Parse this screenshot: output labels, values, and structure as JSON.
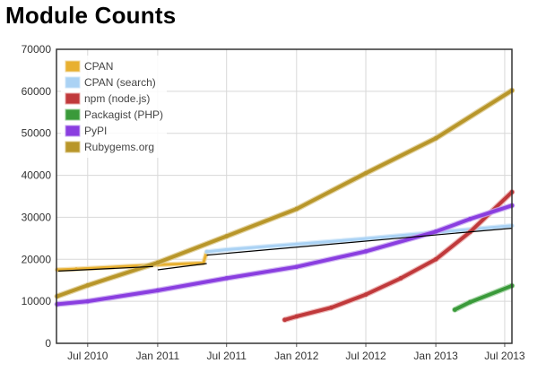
{
  "page": {
    "title": "Module Counts"
  },
  "chart_data": {
    "type": "line",
    "title": "Module Counts",
    "xlabel": "",
    "ylabel": "",
    "x_ticks": [
      "2010-07-01",
      "2011-01-01",
      "2011-07-01",
      "2012-01-01",
      "2012-07-01",
      "2013-01-01",
      "2013-07-01"
    ],
    "x_tick_labels": [
      "Jul 2010",
      "Jan 2011",
      "Jul 2011",
      "Jan 2012",
      "Jul 2012",
      "Jan 2013",
      "Jul 2013"
    ],
    "xlim": [
      "2010-04-10",
      "2013-07-20"
    ],
    "ylim": [
      0,
      70000
    ],
    "y_ticks": [
      0,
      10000,
      20000,
      30000,
      40000,
      50000,
      60000,
      70000
    ],
    "grid": true,
    "legend_position": "top-left",
    "series": [
      {
        "name": "CPAN",
        "color": "#e8b030",
        "light": "#f0d8a0",
        "width": 3,
        "points": [
          [
            "2010-04-12",
            17500
          ],
          [
            "2010-06-01",
            17700
          ],
          [
            "2010-12-10",
            18600
          ],
          [
            "2011-01-01",
            18700
          ],
          [
            "2011-05-01",
            19100
          ],
          [
            "2011-05-10",
            21800
          ]
        ]
      },
      {
        "name": "CPAN (search)",
        "color": "#aad2f4",
        "light": "#cfe6f9",
        "width": 3,
        "points": [
          [
            "2011-05-10",
            21800
          ],
          [
            "2011-07-01",
            22300
          ],
          [
            "2012-01-01",
            23600
          ],
          [
            "2012-07-01",
            24900
          ],
          [
            "2013-01-01",
            26400
          ],
          [
            "2013-07-20",
            28000
          ]
        ]
      },
      {
        "name": "npm (node.js)",
        "color": "#c0393b",
        "light": "#e8a6a6",
        "width": 4,
        "points": [
          [
            "2011-12-01",
            5600
          ],
          [
            "2012-01-01",
            6400
          ],
          [
            "2012-04-01",
            8500
          ],
          [
            "2012-07-01",
            11600
          ],
          [
            "2012-10-01",
            15500
          ],
          [
            "2013-01-01",
            20000
          ],
          [
            "2013-04-01",
            26500
          ],
          [
            "2013-07-20",
            36000
          ]
        ]
      },
      {
        "name": "Packagist (PHP)",
        "color": "#3a9a3a",
        "light": "#9fd29f",
        "width": 4,
        "points": [
          [
            "2013-02-20",
            8000
          ],
          [
            "2013-04-01",
            9800
          ],
          [
            "2013-07-20",
            13700
          ]
        ]
      },
      {
        "name": "PyPI",
        "color": "#8a3ee0",
        "light": "#c7a8f0",
        "width": 4,
        "points": [
          [
            "2010-04-12",
            9300
          ],
          [
            "2010-07-01",
            10000
          ],
          [
            "2011-01-01",
            12600
          ],
          [
            "2011-07-01",
            15500
          ],
          [
            "2012-01-01",
            18200
          ],
          [
            "2012-07-01",
            21900
          ],
          [
            "2013-01-01",
            26600
          ],
          [
            "2013-04-01",
            29600
          ],
          [
            "2013-07-20",
            32800
          ]
        ]
      },
      {
        "name": "Rubygems.org",
        "color": "#b8962a",
        "light": "#dcc88a",
        "width": 4,
        "points": [
          [
            "2010-04-12",
            11200
          ],
          [
            "2010-07-01",
            13800
          ],
          [
            "2011-01-01",
            19200
          ],
          [
            "2011-07-01",
            25500
          ],
          [
            "2012-01-01",
            32000
          ],
          [
            "2012-07-01",
            40500
          ],
          [
            "2013-01-01",
            48800
          ],
          [
            "2013-07-20",
            60200
          ]
        ]
      }
    ],
    "trend_lines": [
      {
        "color": "#000000",
        "points": [
          [
            "2010-04-15",
            17200
          ],
          [
            "2010-12-20",
            18300
          ]
        ]
      },
      {
        "color": "#000000",
        "points": [
          [
            "2011-01-01",
            17500
          ],
          [
            "2011-05-10",
            19000
          ]
        ]
      },
      {
        "color": "#000000",
        "points": [
          [
            "2011-05-10",
            21000
          ],
          [
            "2013-07-20",
            27400
          ]
        ]
      }
    ]
  }
}
